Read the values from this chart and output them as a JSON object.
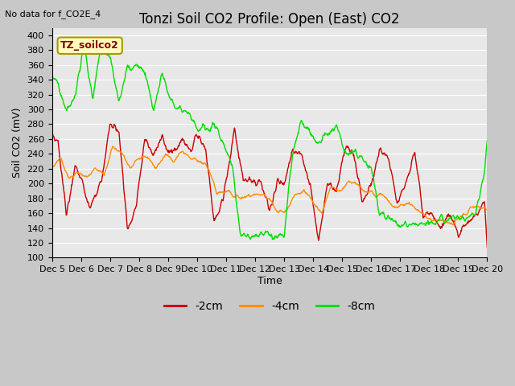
{
  "title": "Tonzi Soil CO2 Profile: Open (East) CO2",
  "subtitle": "No data for f_CO2E_4",
  "ylabel": "Soil CO2 (mV)",
  "xlabel": "Time",
  "legend_label": "TZ_soilco2",
  "ylim": [
    100,
    410
  ],
  "yticks": [
    100,
    120,
    140,
    160,
    180,
    200,
    220,
    240,
    260,
    280,
    300,
    320,
    340,
    360,
    380,
    400
  ],
  "series": {
    "2cm": {
      "color": "#cc0000",
      "label": "-2cm",
      "lw": 1.0
    },
    "4cm": {
      "color": "#ff8c00",
      "label": "-4cm",
      "lw": 1.0
    },
    "8cm": {
      "color": "#00dd00",
      "label": "-8cm",
      "lw": 1.0
    }
  },
  "plot_bg_color": "#e8e8e8",
  "fig_bg_color": "#c8c8c8",
  "grid_color": "#ffffff",
  "title_fontsize": 12,
  "axis_fontsize": 9,
  "tick_fontsize": 8
}
